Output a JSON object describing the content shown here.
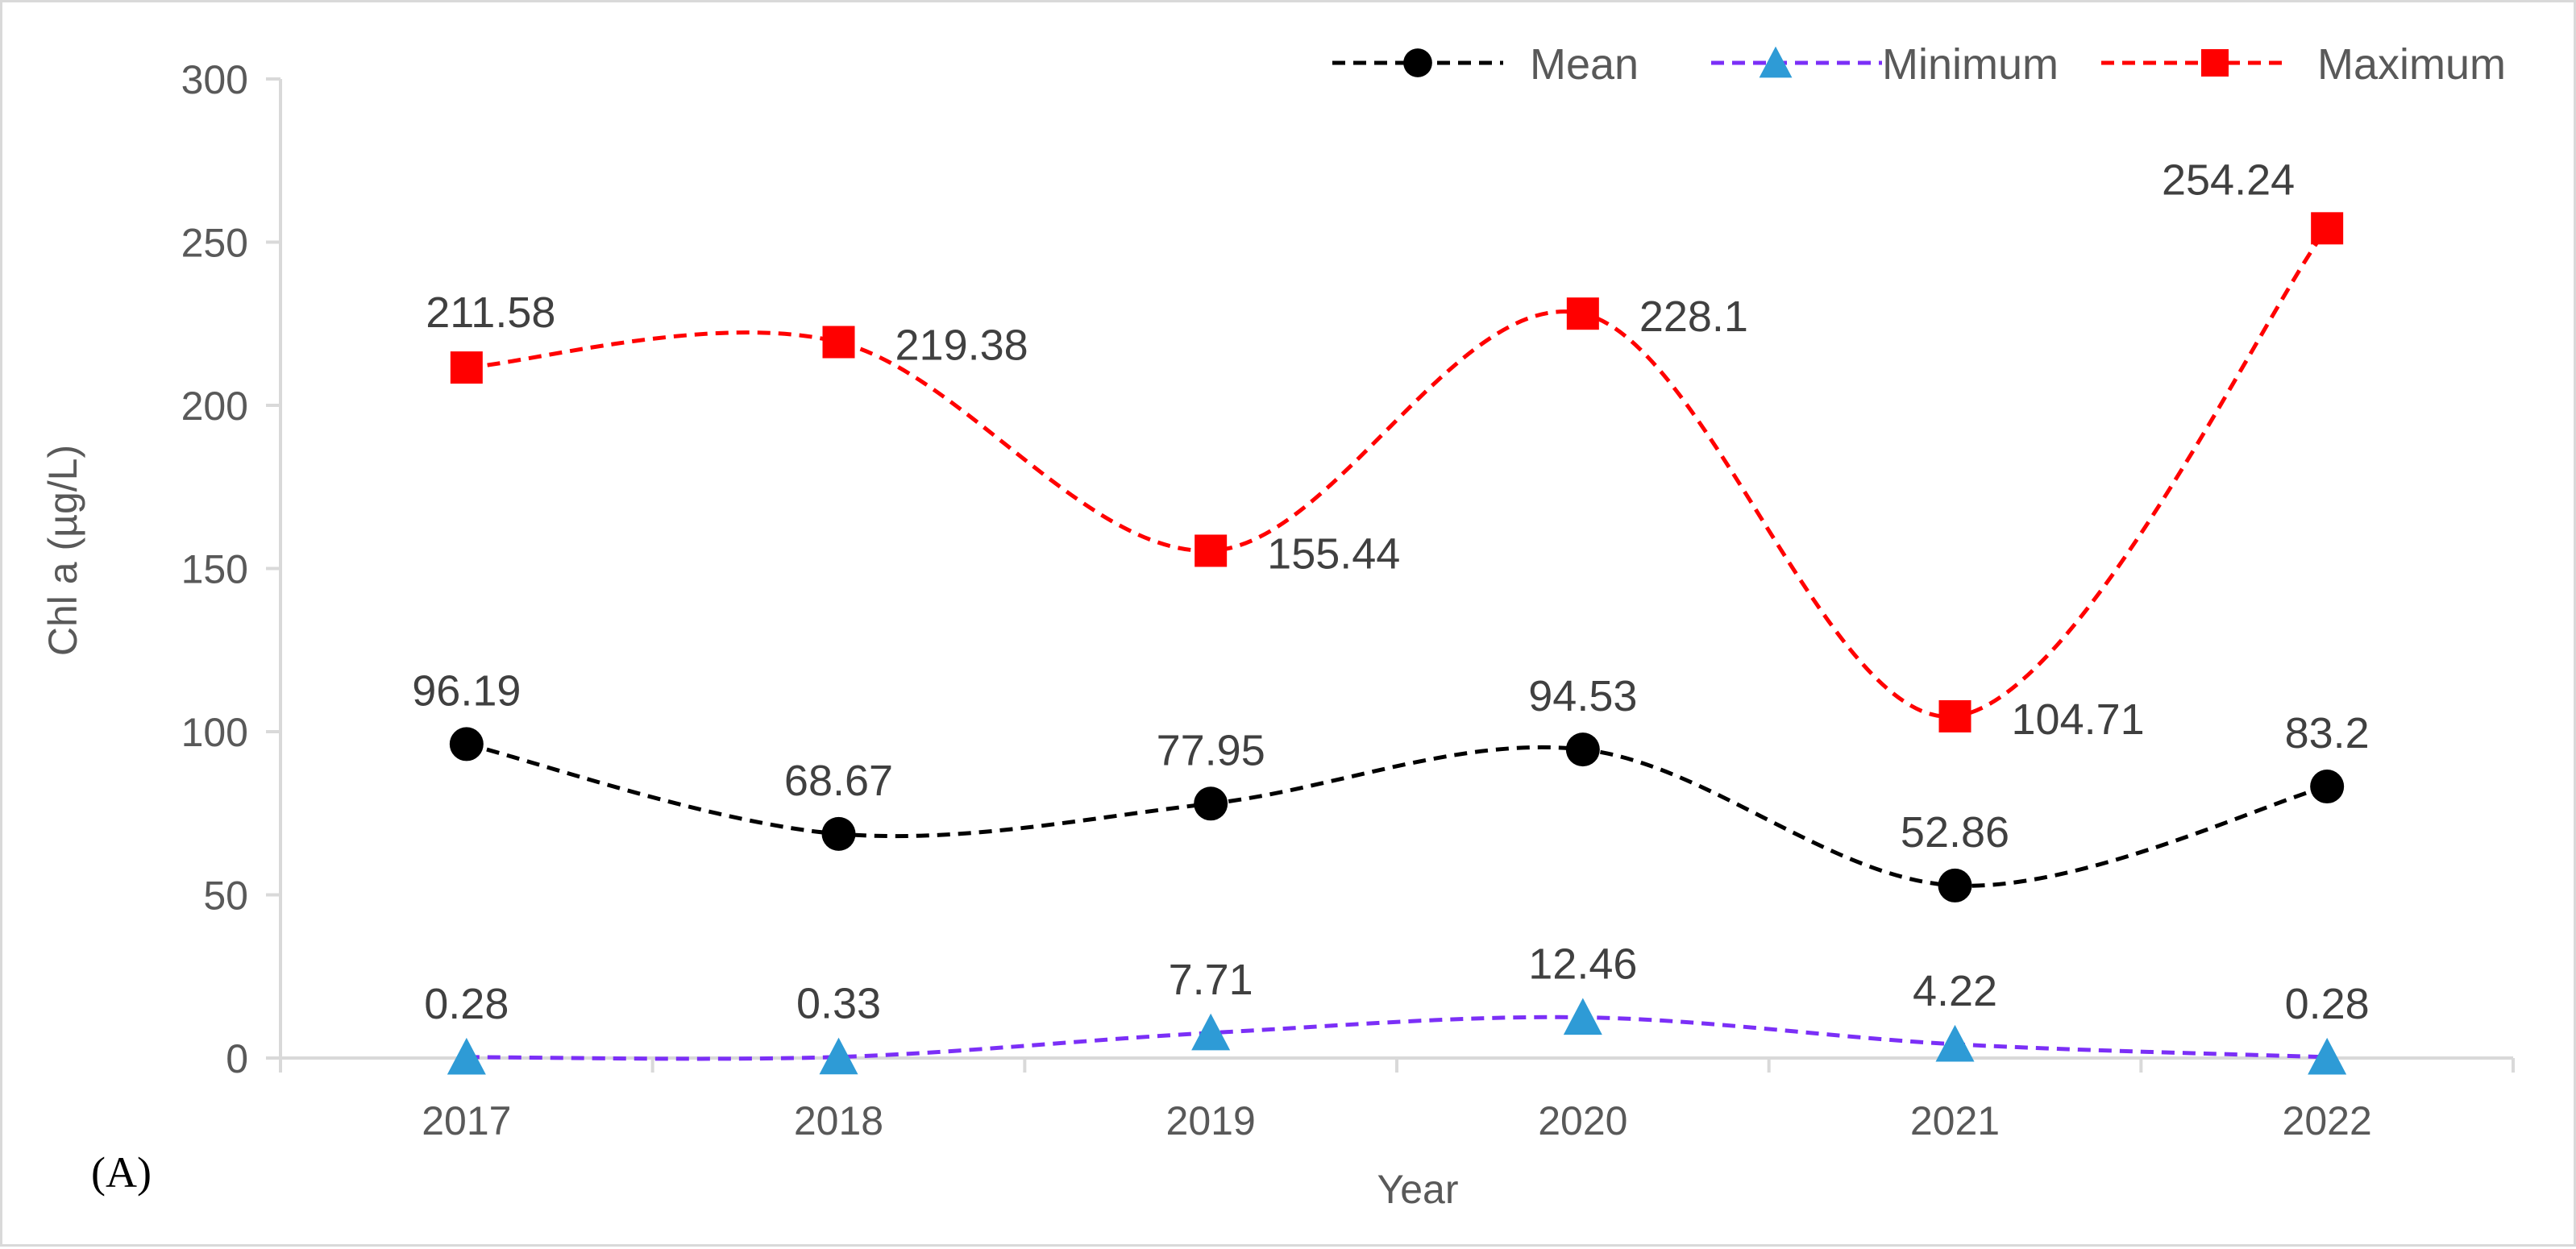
{
  "chart_data": {
    "type": "line",
    "title": "",
    "panel_label": "(A)",
    "xlabel": "Year",
    "ylabel": "Chl a (µg/L)",
    "ylim": [
      0,
      300
    ],
    "yticks": [
      "0",
      "50",
      "100",
      "150",
      "200",
      "250",
      "300"
    ],
    "categories": [
      "2017",
      "2018",
      "2019",
      "2020",
      "2021",
      "2022"
    ],
    "grid": false,
    "legend_position": "top-right",
    "series": [
      {
        "name": "Mean",
        "marker": "circle",
        "color": "#000000",
        "line_color": "#000000",
        "values": [
          96.19,
          68.67,
          77.95,
          94.53,
          52.86,
          83.2
        ],
        "labels": [
          "96.19",
          "68.67",
          "77.95",
          "94.53",
          "52.86",
          "83.2"
        ],
        "label_positions": [
          "above",
          "above",
          "above",
          "above",
          "above",
          "above"
        ]
      },
      {
        "name": "Minimum",
        "marker": "triangle",
        "color": "#2E9BD6",
        "line_color": "#7B2FF7",
        "values": [
          0.28,
          0.33,
          7.71,
          12.46,
          4.22,
          0.28
        ],
        "labels": [
          "0.28",
          "0.33",
          "7.71",
          "12.46",
          "4.22",
          "0.28"
        ],
        "label_positions": [
          "above",
          "above",
          "above",
          "above",
          "above",
          "above"
        ]
      },
      {
        "name": "Maximum",
        "marker": "square",
        "color": "#FF0000",
        "line_color": "#FF0000",
        "values": [
          211.58,
          219.38,
          155.44,
          228.1,
          104.71,
          254.24
        ],
        "labels": [
          "211.58",
          "219.38",
          "155.44",
          "228.1",
          "104.71",
          "254.24"
        ],
        "label_positions": [
          "above",
          "right",
          "right",
          "right",
          "right",
          "above-left"
        ]
      }
    ]
  },
  "axis_color": "#d9d9d9"
}
